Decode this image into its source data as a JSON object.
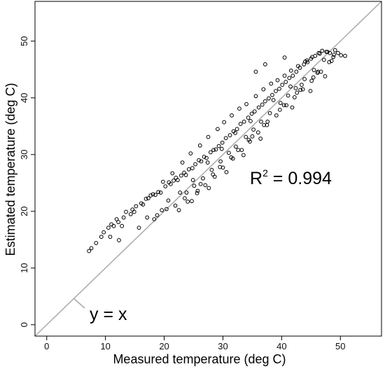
{
  "chart_data": {
    "type": "scatter",
    "xlabel": "Measured temperature (deg C)",
    "ylabel": "Estimated temperature (deg C)",
    "xlim": [
      -2,
      57
    ],
    "ylim": [
      -2,
      57
    ],
    "xticks": [
      "0",
      "10",
      "20",
      "30",
      "40",
      "50"
    ],
    "yticks": [
      "0",
      "10",
      "20",
      "30",
      "40",
      "50"
    ],
    "grid": false,
    "marker": "open-circle",
    "colors": {
      "points": "#000000",
      "reference_line": "#aaaaaa",
      "frame": "#000000"
    },
    "annotations": {
      "r2_prefix": "R",
      "r2_sup": "2",
      "r2_value": " = 0.994",
      "identity_label": "y = x"
    },
    "reference_line": {
      "slope": 1,
      "intercept": 0
    },
    "series": [
      {
        "x": [
          7.2,
          7.6,
          8.4,
          9.3,
          9.7,
          10.5,
          11,
          11.4,
          11.9,
          12.2,
          13.1,
          13.5,
          14.3,
          14.6,
          15.2,
          16.1,
          16.9,
          17.3,
          18.1,
          18.5,
          19,
          19.4,
          20.2,
          20.8,
          21.1,
          21.6,
          22,
          22.3,
          22.9,
          23.4,
          23.7,
          24.2,
          24.8,
          25.3,
          25.9,
          26.3,
          26.8,
          27.2,
          27.9,
          28.4,
          28.8,
          29.3,
          29.9,
          30.5,
          31.2,
          31.8,
          32.4,
          33,
          33.6,
          34.3,
          34.9,
          35.4,
          36.1,
          36.7,
          37.2,
          37.8,
          38.4,
          39,
          39.6,
          40.1,
          40.7,
          41.3,
          41.9,
          42.5,
          43.1,
          43.8,
          44.4,
          45,
          45.7,
          46.3,
          46.9,
          47.6,
          48.2,
          48.9,
          49.6,
          50.1,
          50.8,
          10.8,
          12.8,
          14.9,
          16.4,
          17.7,
          19.8,
          21.4,
          23.1,
          24.5,
          26.1,
          27.5,
          29.1,
          30.2,
          31.5,
          32.8,
          34,
          35.6,
          36.9,
          38.2,
          39.3,
          40.5,
          41.6,
          42.8,
          44,
          45.2,
          46.5,
          47.8,
          49.1,
          22.5,
          24,
          25.6,
          27,
          28.6,
          30,
          31.7,
          33.2,
          34.6,
          36,
          37.5,
          39.1,
          40.8,
          42.2,
          43.6,
          45.1,
          46.7,
          48.5,
          12.3,
          15.7,
          18.8,
          20.4,
          23.8,
          25.1,
          26.6,
          28.1,
          29.6,
          31,
          32.2,
          33.9,
          35.2,
          36.5,
          38,
          39.8,
          41.1,
          42.4,
          43.9,
          45.5,
          47.2,
          26.2,
          29.5,
          32.6,
          35,
          37.6,
          40.4,
          43.2,
          46.1,
          48.8,
          28.3,
          31.4,
          34.4,
          37,
          39.7,
          42.6,
          45.4,
          48.1,
          35.6,
          37.2,
          40.5,
          44.3,
          24.7,
          27.6,
          30.6,
          33.5,
          36.4,
          41.8,
          44.9,
          47.4,
          21.9,
          19.6,
          23.5,
          25.7,
          18.3,
          17.1,
          20.7,
          22.7,
          24.9,
          27.4,
          29.8,
          32.1,
          34.7,
          38.6,
          41.5,
          43.4,
          46.2
        ],
        "y": [
          13,
          13.5,
          14.4,
          15.5,
          16.3,
          17.1,
          17.7,
          17.4,
          18.6,
          18.1,
          18.9,
          19.9,
          19.5,
          20.3,
          20.9,
          21.4,
          22.2,
          22.3,
          23,
          22.9,
          23.4,
          23.3,
          24.4,
          25.1,
          24.8,
          25.4,
          25.9,
          25.5,
          26.3,
          26.8,
          26.4,
          27.4,
          27.6,
          28.3,
          29,
          28.8,
          29.6,
          29.4,
          30.4,
          30.8,
          30.9,
          31.5,
          32.1,
          32.9,
          33.4,
          34.1,
          34.5,
          35.4,
          35.8,
          36.5,
          37.2,
          37.6,
          38.3,
          38.8,
          39.4,
          39.9,
          40.5,
          41.2,
          41.6,
          42.3,
          42.8,
          43.5,
          43.9,
          44.6,
          45.3,
          45.9,
          46.3,
          46.9,
          47.4,
          47.9,
          48.3,
          48.1,
          47.9,
          47.6,
          47.9,
          47.5,
          47.4,
          15.5,
          17.4,
          19.9,
          21.2,
          22.8,
          25.2,
          26.7,
          28.6,
          30.2,
          31.6,
          33.1,
          34.5,
          35.7,
          36.9,
          38.1,
          38.9,
          40.3,
          41.5,
          42.5,
          43.1,
          43.9,
          44.8,
          45.6,
          46.4,
          47.2,
          47.8,
          48.1,
          48.4,
          20.2,
          21.7,
          23.2,
          24.6,
          26.1,
          27.7,
          29.3,
          30.8,
          32.3,
          33.9,
          35.2,
          36.9,
          38.7,
          40.1,
          41.5,
          43,
          44.6,
          46.5,
          14.9,
          17.1,
          19.3,
          20.4,
          23.3,
          24.5,
          25.8,
          27.3,
          28.8,
          30.3,
          31.4,
          33.1,
          34.4,
          35.8,
          37.3,
          39.1,
          40.4,
          41.7,
          43.3,
          44.9,
          46.7,
          24.8,
          27.8,
          30.8,
          33.2,
          35.8,
          38.7,
          41.4,
          44.4,
          47.2,
          26.5,
          29.5,
          32.6,
          35.2,
          37.9,
          40.9,
          43.6,
          46.3,
          44.6,
          45.9,
          47.1,
          46.6,
          21.8,
          24.1,
          26.9,
          29.9,
          32.8,
          38.3,
          41.2,
          43.8,
          21,
          20.2,
          22.3,
          23.6,
          18.6,
          18.9,
          21.9,
          23.3,
          25.5,
          28.6,
          31,
          33.8,
          35.9,
          39.6,
          42,
          42.3,
          44.6
        ]
      }
    ]
  }
}
